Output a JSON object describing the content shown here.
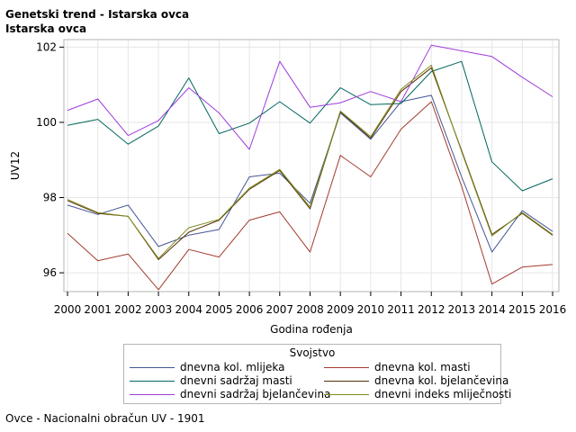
{
  "titles": {
    "line1": "Genetski trend - Istarska ovca",
    "line2": "Istarska ovca"
  },
  "footnote": "Ovce - Nacionalni obračun UV - 1901",
  "legend": {
    "title": "Svojstvo"
  },
  "chart_data": {
    "type": "line",
    "title": "Genetski trend - Istarska ovca",
    "subtitle": "Istarska ovca",
    "xlabel": "Godina rođenja",
    "ylabel": "UV12",
    "x": [
      2000,
      2001,
      2002,
      2003,
      2004,
      2005,
      2006,
      2007,
      2008,
      2009,
      2010,
      2011,
      2012,
      2013,
      2014,
      2015,
      2016
    ],
    "xlim": [
      2000,
      2016
    ],
    "ylim": [
      95.5,
      102.2
    ],
    "yticks": [
      96,
      98,
      100,
      102
    ],
    "grid": true,
    "legend_position": "bottom",
    "series": [
      {
        "name": "dnevna kol. mlijeka",
        "color": "#445694",
        "values": [
          97.8,
          97.55,
          97.8,
          96.7,
          97.0,
          97.15,
          98.55,
          98.65,
          97.85,
          100.25,
          99.55,
          100.55,
          100.72,
          98.55,
          96.55,
          97.65,
          97.1
        ]
      },
      {
        "name": "dnevna kol. masti",
        "color": "#a23a2e",
        "values": [
          97.05,
          96.32,
          96.5,
          95.55,
          96.62,
          96.42,
          97.4,
          97.62,
          96.55,
          99.12,
          98.55,
          99.82,
          100.55,
          98.3,
          95.7,
          96.15,
          96.22
        ]
      },
      {
        "name": "dnevni sadržaj masti",
        "color": "#01665e",
        "values": [
          99.92,
          100.08,
          99.42,
          99.9,
          101.18,
          99.7,
          99.98,
          100.55,
          99.98,
          100.92,
          100.47,
          100.5,
          101.35,
          101.62,
          98.95,
          98.18,
          98.5
        ]
      },
      {
        "name": "dnevna kol. bjelančevina",
        "color": "#543005",
        "values": [
          97.92,
          97.58,
          97.5,
          96.35,
          97.08,
          97.4,
          98.22,
          98.72,
          97.7,
          100.28,
          99.58,
          100.82,
          101.45,
          99.25,
          97.02,
          97.58,
          97.0
        ]
      },
      {
        "name": "dnevni sadržaj bjelančevina",
        "color": "#9d3cdb",
        "values": [
          100.32,
          100.62,
          99.65,
          100.05,
          100.92,
          100.25,
          99.28,
          101.62,
          100.4,
          100.52,
          100.82,
          100.55,
          102.05,
          101.9,
          101.75,
          101.2,
          100.68
        ]
      },
      {
        "name": "dnevni indeks mliječnosti",
        "color": "#7f8e1f",
        "values": [
          97.95,
          97.6,
          97.5,
          96.38,
          97.2,
          97.42,
          98.25,
          98.75,
          97.75,
          100.3,
          99.62,
          100.88,
          101.52,
          99.22,
          96.98,
          97.6,
          97.02
        ]
      }
    ]
  }
}
